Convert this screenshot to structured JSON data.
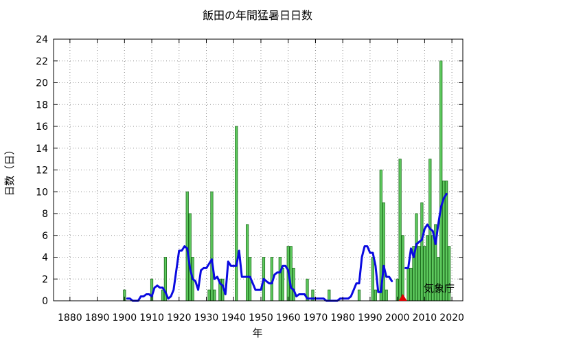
{
  "chart_data": {
    "type": "bar",
    "title": "飯田の年間猛暑日日数",
    "xlabel": "年",
    "ylabel": "日数（日）",
    "source_label": "気象庁",
    "xlim": [
      1874,
      2024
    ],
    "ylim": [
      0,
      24
    ],
    "x_ticks": [
      1880,
      1890,
      1900,
      1910,
      1920,
      1930,
      1940,
      1950,
      1960,
      1970,
      1980,
      1990,
      2000,
      2010,
      2020
    ],
    "y_ticks": [
      0,
      2,
      4,
      6,
      8,
      10,
      12,
      14,
      16,
      18,
      20,
      22,
      24
    ],
    "grid": true,
    "colors": {
      "bar_fill": "#5ec95e",
      "bar_edge": "#1c6b1c",
      "moving_average": "#0a0ae0",
      "marker": "#e00000"
    },
    "series": [
      {
        "kind": "bar",
        "years": [
          1897,
          1898,
          1899,
          1900,
          1901,
          1902,
          1903,
          1904,
          1905,
          1906,
          1907,
          1908,
          1909,
          1910,
          1911,
          1912,
          1913,
          1914,
          1915,
          1916,
          1917,
          1918,
          1919,
          1920,
          1921,
          1922,
          1923,
          1924,
          1925,
          1926,
          1927,
          1928,
          1929,
          1930,
          1931,
          1932,
          1933,
          1934,
          1935,
          1936,
          1937,
          1938,
          1939,
          1940,
          1941,
          1942,
          1943,
          1944,
          1945,
          1946,
          1947,
          1948,
          1949,
          1950,
          1951,
          1952,
          1953,
          1954,
          1955,
          1956,
          1957,
          1958,
          1959,
          1960,
          1961,
          1962,
          1963,
          1964,
          1965,
          1966,
          1967,
          1968,
          1969,
          1970,
          1971,
          1972,
          1973,
          1974,
          1975,
          1976,
          1977,
          1978,
          1979,
          1980,
          1981,
          1982,
          1983,
          1984,
          1985,
          1986,
          1987,
          1988,
          1989,
          1990,
          1991,
          1992,
          1993,
          1994,
          1995,
          1996,
          1997,
          1998,
          1999,
          2000,
          2001,
          2002,
          2003,
          2004,
          2005,
          2006,
          2007,
          2008,
          2009,
          2010,
          2011,
          2012,
          2013,
          2014,
          2015,
          2016,
          2017,
          2018,
          2019,
          2020
        ],
        "values": [
          0,
          0,
          0,
          1,
          0,
          0,
          0,
          0,
          0,
          0,
          0,
          0,
          0,
          2,
          0,
          0,
          0,
          1,
          4,
          0,
          0,
          0,
          0,
          0,
          0,
          0,
          10,
          8,
          4,
          0,
          0,
          0,
          0,
          0,
          1,
          10,
          1,
          0,
          2,
          2,
          0,
          0,
          0,
          0,
          16,
          0,
          0,
          0,
          7,
          4,
          0,
          0,
          0,
          0,
          4,
          0,
          0,
          4,
          0,
          0,
          4,
          3,
          0,
          5,
          5,
          3,
          0,
          0,
          0,
          0,
          2,
          0,
          1,
          0,
          0,
          0,
          0,
          0,
          1,
          0,
          0,
          0,
          0,
          0,
          0,
          0,
          0,
          0,
          0,
          1,
          0,
          0,
          0,
          0,
          4,
          1,
          0,
          12,
          9,
          1,
          0,
          0,
          0,
          2,
          13,
          6,
          0,
          3,
          3,
          5,
          8,
          5,
          9,
          5,
          6,
          13,
          6,
          7,
          4,
          22,
          11,
          11,
          5,
          0
        ]
      },
      {
        "kind": "line",
        "years": [
          1901,
          1902,
          1903,
          1904,
          1905,
          1906,
          1907,
          1908,
          1909,
          1910,
          1911,
          1912,
          1913,
          1914,
          1915,
          1916,
          1917,
          1918,
          1919,
          1920,
          1921,
          1922,
          1923,
          1924,
          1925,
          1926,
          1927,
          1928,
          1929,
          1930,
          1931,
          1932,
          1933,
          1934,
          1935,
          1936,
          1937,
          1938,
          1939,
          1940,
          1941,
          1942,
          1943,
          1944,
          1945,
          1946,
          1947,
          1948,
          1949,
          1950,
          1951,
          1952,
          1953,
          1954,
          1955,
          1956,
          1957,
          1958,
          1959,
          1960,
          1961,
          1962,
          1963,
          1964,
          1965,
          1966,
          1967,
          1968,
          1969,
          1970,
          1971,
          1972,
          1973,
          1974,
          1975,
          1976,
          1977,
          1978,
          1979,
          1980,
          1981,
          1982,
          1983,
          1984,
          1985,
          1986,
          1987,
          1988,
          1989,
          1990,
          1991,
          1992,
          1993,
          1994,
          1995,
          1996,
          1997,
          1998
        ],
        "values": [
          0.2,
          0.2,
          0,
          0,
          0,
          0.4,
          0.4,
          0.6,
          0.6,
          0.4,
          1.2,
          1.4,
          1.2,
          1.2,
          0.8,
          0.2,
          0.4,
          1.0,
          2.8,
          4.6,
          4.6,
          5.0,
          4.8,
          3.0,
          2.0,
          1.8,
          1.0,
          2.8,
          3.0,
          3.0,
          3.4,
          3.8,
          2.0,
          2.2,
          1.6,
          1.4,
          0.6,
          3.6,
          3.2,
          3.2,
          3.2,
          4.6,
          2.2,
          2.2,
          2.2,
          2.2,
          1.6,
          1.0,
          1.0,
          1.0,
          2.0,
          1.8,
          1.6,
          1.6,
          2.4,
          2.6,
          2.6,
          3.2,
          3.2,
          2.8,
          1.2,
          1.0,
          0.4,
          0.6,
          0.6,
          0.6,
          0.2,
          0.2,
          0.2,
          0.2,
          0.2,
          0.2,
          0.2,
          0,
          0,
          0,
          0,
          0,
          0.2,
          0.2,
          0.2,
          0.2,
          0.4,
          1.0,
          1.6,
          1.6,
          4.0,
          5.0,
          5.0,
          4.4,
          4.4,
          3.2,
          0.8,
          0.8,
          3.2,
          2.2,
          2.2,
          1.8
        ]
      },
      {
        "kind": "line",
        "years": [
          2003,
          2004,
          2005,
          2006,
          2007,
          2008,
          2009,
          2010,
          2011,
          2012,
          2013,
          2014,
          2015,
          2016,
          2017,
          2018
        ],
        "values": [
          3.0,
          3.0,
          4.8,
          4.0,
          5.2,
          5.4,
          5.6,
          6.6,
          7.0,
          6.6,
          6.4,
          5.2,
          7.0,
          8.6,
          9.4,
          9.8
        ]
      }
    ],
    "markers": [
      {
        "year": 2002,
        "value": 0,
        "shape": "triangle"
      }
    ]
  }
}
